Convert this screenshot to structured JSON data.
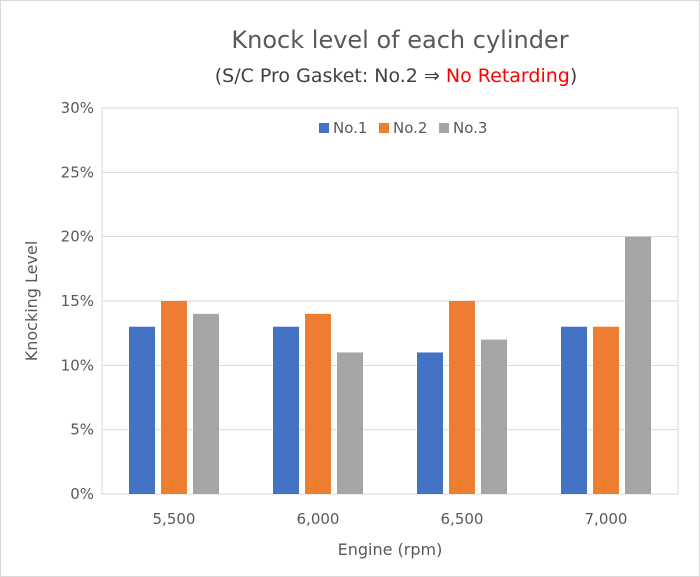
{
  "chart_data": {
    "type": "bar",
    "title": "Knock level of each cylinder",
    "subtitle_prefix": "(S/C Pro Gasket: No.2 ⇒ ",
    "subtitle_highlight": "No Retarding",
    "subtitle_suffix": ")",
    "xlabel": "Engine (rpm)",
    "ylabel": "Knocking Level",
    "categories": [
      "5,500",
      "6,000",
      "6,500",
      "7,000"
    ],
    "series": [
      {
        "name": "No.1",
        "color": "#4472c4",
        "values": [
          13,
          13,
          11,
          13
        ]
      },
      {
        "name": "No.2",
        "color": "#ed7d31",
        "values": [
          15,
          14,
          15,
          13
        ]
      },
      {
        "name": "No.3",
        "color": "#a5a5a5",
        "values": [
          14,
          11,
          12,
          20
        ]
      }
    ],
    "ylim": [
      0,
      30
    ],
    "yticks": [
      "0%",
      "5%",
      "10%",
      "15%",
      "20%",
      "25%",
      "30%"
    ],
    "ytick_values": [
      0,
      5,
      10,
      15,
      20,
      25,
      30
    ],
    "unit": "%",
    "grid": true,
    "legend_position": "top-center",
    "highlight_color": "#ff0000"
  }
}
